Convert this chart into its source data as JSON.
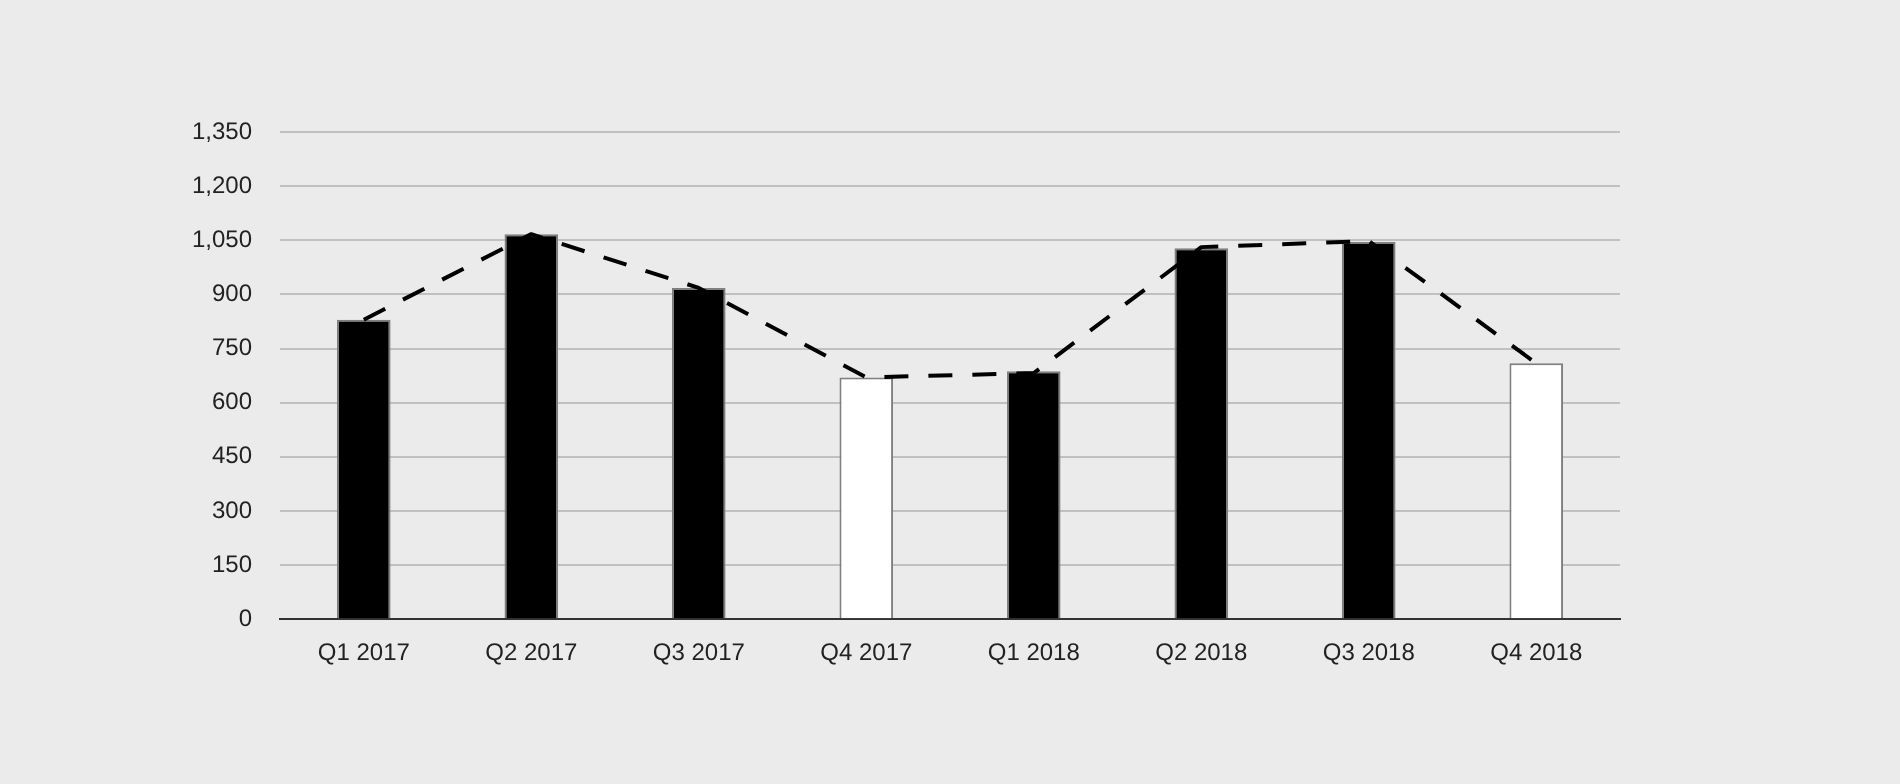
{
  "chart_data": {
    "type": "bar",
    "categories": [
      "Q1 2017",
      "Q2 2017",
      "Q3 2017",
      "Q4 2017",
      "Q1 2018",
      "Q2 2018",
      "Q3 2018",
      "Q4 2018"
    ],
    "series": [
      {
        "values": [
          830,
          1067,
          918,
          670,
          687,
          1028,
          1045,
          709
        ],
        "colors": [
          "#000000",
          "#000000",
          "#000000",
          "#ffffff",
          "#000000",
          "#000000",
          "#000000",
          "#ffffff"
        ]
      },
      {
        "type": "line",
        "color": "#000000",
        "values": [
          830,
          1067,
          918,
          670,
          682,
          1031,
          1048,
          709
        ],
        "line_style": "dashed",
        "marker": "none"
      }
    ],
    "ylim": [
      0,
      1350
    ],
    "yticks": [
      0,
      150,
      300,
      450,
      600,
      750,
      900,
      {
        "value": 1050,
        "label": "1,050"
      },
      {
        "value": 1200,
        "label": "1,200"
      },
      {
        "value": 1350,
        "label": "1,350"
      }
    ],
    "grid": "y",
    "legend": false
  }
}
